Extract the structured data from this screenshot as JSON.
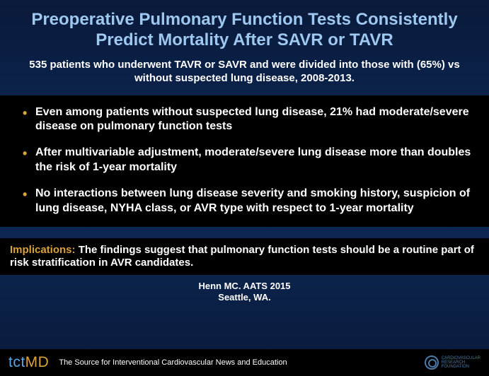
{
  "title": "Preoperative Pulmonary Function Tests Consistently Predict Mortality After SAVR or TAVR",
  "subtitle": "535 patients who underwent TAVR or SAVR and were divided into those with (65%) vs without suspected lung disease, 2008-2013.",
  "bullets": [
    "Even among patients without suspected lung disease, 21% had moderate/severe disease on pulmonary function tests",
    "After multivariable adjustment, moderate/severe lung disease more than doubles the risk of 1-year mortality",
    "No interactions between lung disease severity and smoking history, suspicion of lung disease, NYHA class,  or AVR type with respect to 1-year mortality"
  ],
  "implications": {
    "label": "Implications: ",
    "text": "The findings suggest that pulmonary function tests should be a routine part of risk stratification in AVR candidates."
  },
  "citation": {
    "line1": "Henn MC. AATS 2015",
    "line2": "Seattle, WA."
  },
  "footer": {
    "logo_tct": "tct",
    "logo_md": "MD",
    "tagline": "The Source for Interventional Cardiovascular News and Education",
    "crf_line1": "Cardiovascular",
    "crf_line2": "Research",
    "crf_line3": "Foundation"
  },
  "colors": {
    "title": "#9ec8f0",
    "accent": "#d9a33a",
    "bg_top": "#0a1a3a",
    "bg_mid": "#0c2a5a",
    "box_bg": "#000000",
    "text": "#ffffff",
    "logo_blue": "#5aa6e0",
    "crf": "#4a7aa8"
  }
}
